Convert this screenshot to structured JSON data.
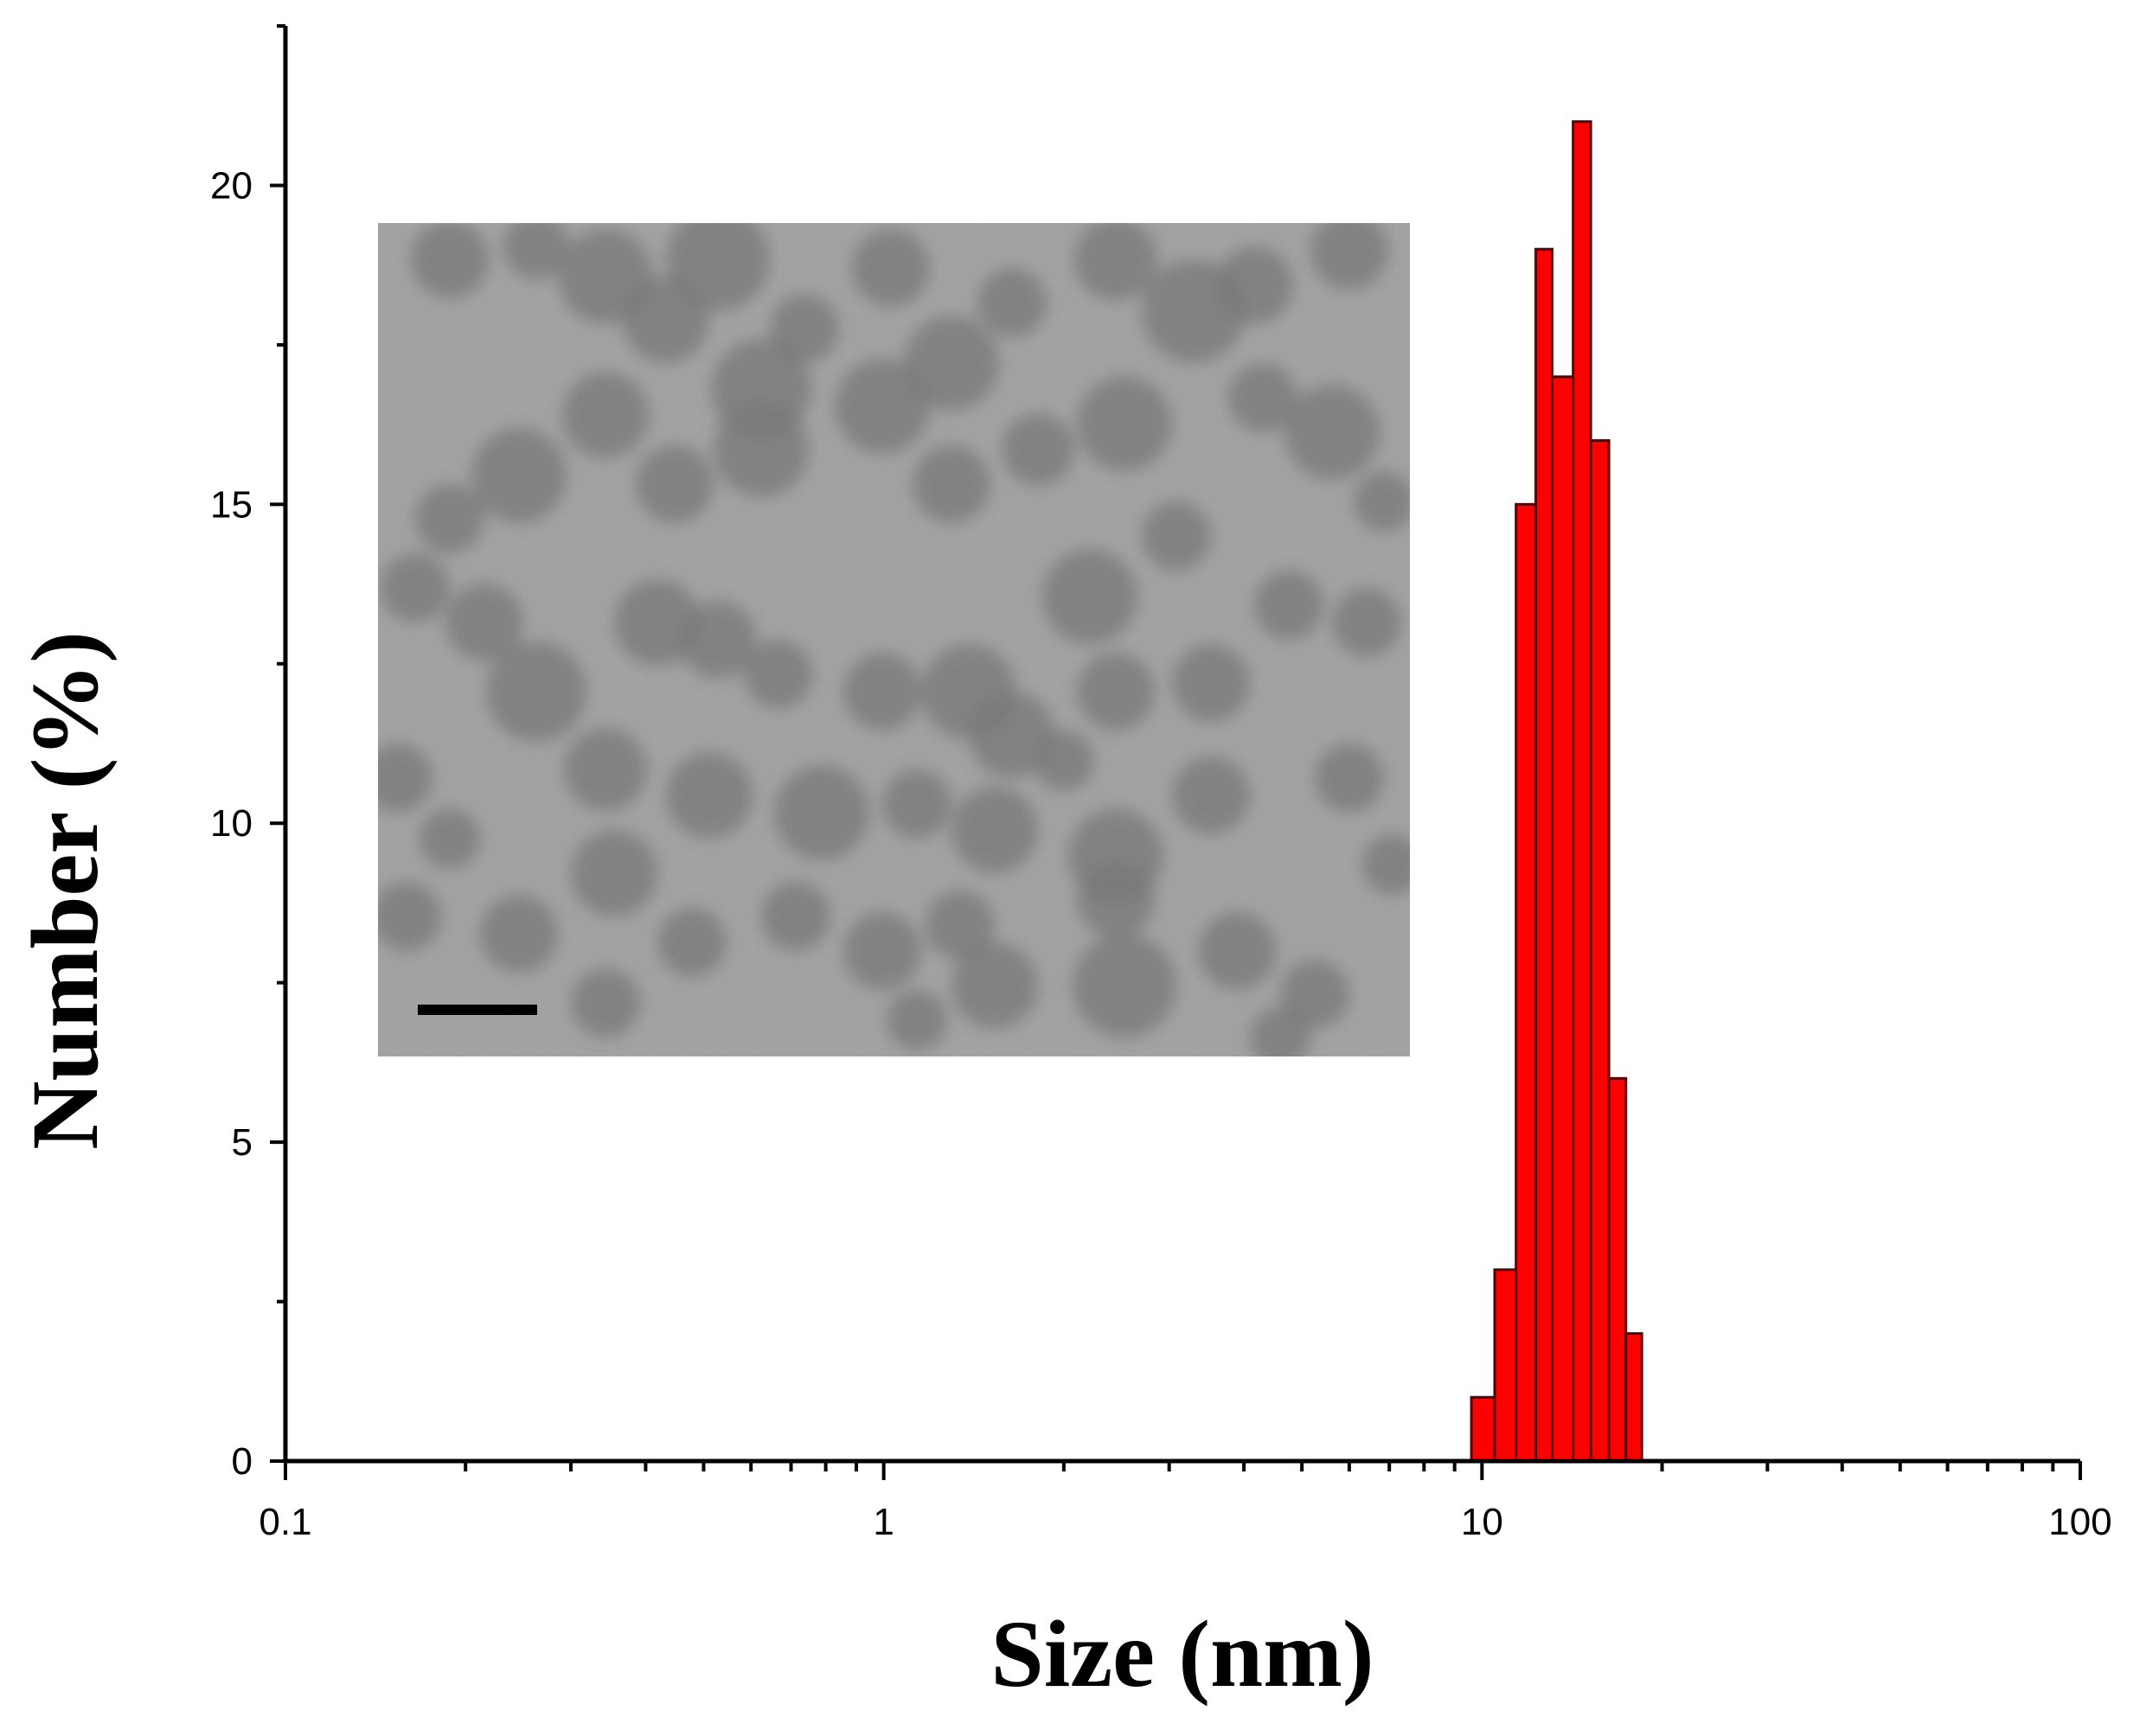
{
  "chart_data": {
    "type": "bar",
    "xlabel": "Size (nm)",
    "ylabel": "Number (%)",
    "x_scale": "log",
    "xlim": [
      0.1,
      100
    ],
    "ylim": [
      0,
      22.5
    ],
    "x_ticks": [
      "0.1",
      "1",
      "10",
      "100"
    ],
    "y_ticks": [
      "0",
      "5",
      "10",
      "15",
      "20"
    ],
    "bar_color": "#ff0000",
    "bar_edge_color": "#5a0000",
    "bins": [
      {
        "x_from": 9.6,
        "x_to": 10.5,
        "value": 1
      },
      {
        "x_from": 10.5,
        "x_to": 11.4,
        "value": 3
      },
      {
        "x_from": 11.4,
        "x_to": 12.3,
        "value": 15
      },
      {
        "x_from": 12.3,
        "x_to": 13.1,
        "value": 19
      },
      {
        "x_from": 13.1,
        "x_to": 14.2,
        "value": 17
      },
      {
        "x_from": 14.2,
        "x_to": 15.2,
        "value": 21
      },
      {
        "x_from": 15.2,
        "x_to": 16.3,
        "value": 16
      },
      {
        "x_from": 16.3,
        "x_to": 17.4,
        "value": 6
      },
      {
        "x_from": 17.4,
        "x_to": 18.5,
        "value": 2
      }
    ],
    "inset": {
      "kind": "TEM micrograph",
      "has_scale_bar": true
    }
  }
}
